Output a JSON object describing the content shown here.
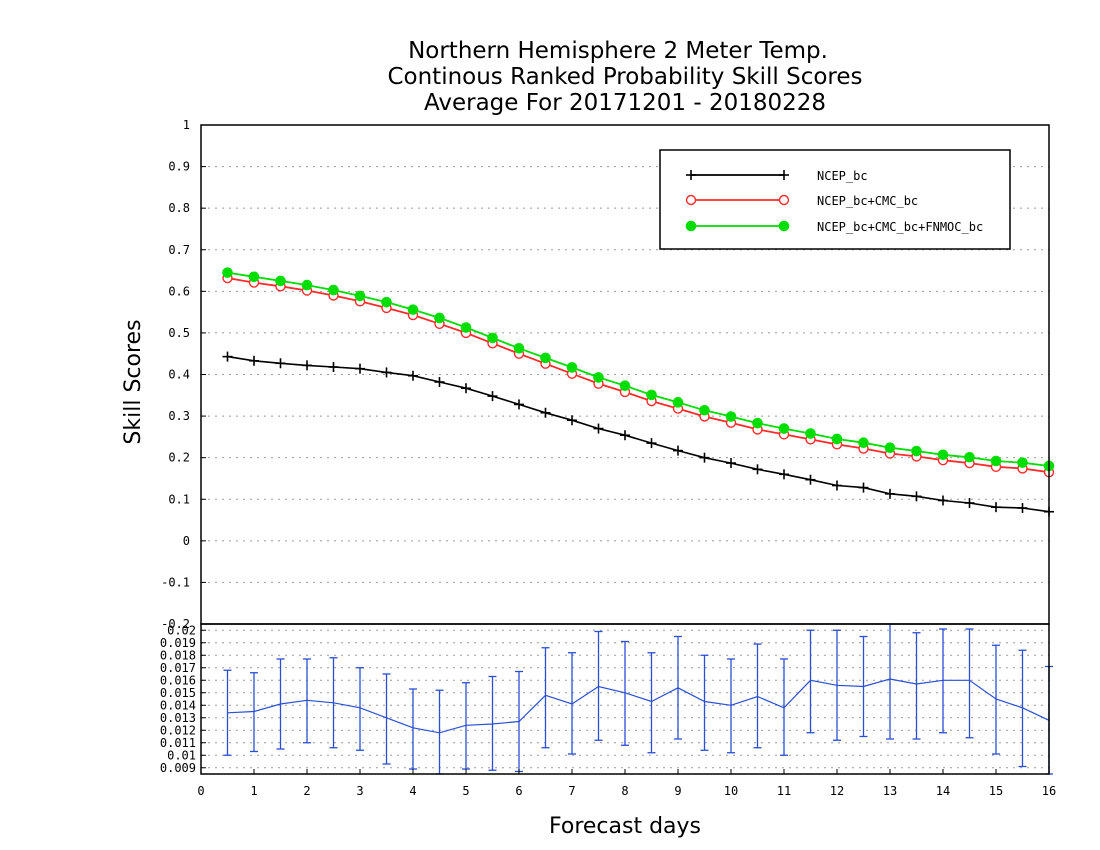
{
  "title": {
    "line1": "Northern Hemisphere 2 Meter Temp.",
    "line2": "Continous Ranked Probability Skill Scores",
    "line3": "Average For 20171201 - 20180228"
  },
  "chart_data": [
    {
      "type": "line",
      "ylabel": "Skill Scores",
      "xlim": [
        0,
        16
      ],
      "ylim": [
        -0.2,
        1.0
      ],
      "x": [
        0.5,
        1,
        1.5,
        2,
        2.5,
        3,
        3.5,
        4,
        4.5,
        5,
        5.5,
        6,
        6.5,
        7,
        7.5,
        8,
        8.5,
        9,
        9.5,
        10,
        10.5,
        11,
        11.5,
        12,
        12.5,
        13,
        13.5,
        14,
        14.5,
        15,
        15.5,
        16
      ],
      "yticks": [
        "-0.2",
        "-0.1",
        "0",
        "0.1",
        "0.2",
        "0.3",
        "0.4",
        "0.5",
        "0.6",
        "0.7",
        "0.8",
        "0.9",
        "1"
      ],
      "grid": true,
      "legend_position": "top-right",
      "series": [
        {
          "name": "NCEP_bc",
          "color": "#000000",
          "marker": "plus",
          "values": [
            0.443,
            0.433,
            0.427,
            0.422,
            0.418,
            0.414,
            0.405,
            0.397,
            0.382,
            0.367,
            0.348,
            0.328,
            0.308,
            0.29,
            0.27,
            0.254,
            0.235,
            0.217,
            0.2,
            0.187,
            0.172,
            0.16,
            0.147,
            0.133,
            0.128,
            0.113,
            0.107,
            0.097,
            0.091,
            0.081,
            0.079,
            0.07
          ]
        },
        {
          "name": "NCEP_bc+CMC_bc",
          "color": "#ff2a2a",
          "marker": "open-circle",
          "values": [
            0.632,
            0.621,
            0.612,
            0.602,
            0.59,
            0.576,
            0.56,
            0.543,
            0.522,
            0.5,
            0.475,
            0.45,
            0.426,
            0.402,
            0.378,
            0.358,
            0.336,
            0.318,
            0.299,
            0.284,
            0.268,
            0.256,
            0.244,
            0.232,
            0.222,
            0.21,
            0.203,
            0.194,
            0.187,
            0.178,
            0.174,
            0.165
          ]
        },
        {
          "name": "NCEP_bc+CMC_bc+FNMOC_bc",
          "color": "#00dd00",
          "marker": "filled-circle",
          "values": [
            0.645,
            0.635,
            0.625,
            0.615,
            0.603,
            0.589,
            0.574,
            0.556,
            0.536,
            0.513,
            0.488,
            0.463,
            0.44,
            0.417,
            0.393,
            0.373,
            0.351,
            0.333,
            0.314,
            0.299,
            0.283,
            0.27,
            0.258,
            0.245,
            0.236,
            0.224,
            0.216,
            0.207,
            0.201,
            0.192,
            0.188,
            0.18
          ]
        }
      ]
    },
    {
      "type": "line",
      "xlabel": "Forecast days",
      "xlim": [
        0,
        16
      ],
      "ylim": [
        0.0085,
        0.0205
      ],
      "xticks": [
        "0",
        "1",
        "2",
        "3",
        "4",
        "5",
        "6",
        "7",
        "8",
        "9",
        "10",
        "11",
        "12",
        "13",
        "14",
        "15",
        "16"
      ],
      "yticks": [
        "0.009",
        "0.01",
        "0.011",
        "0.012",
        "0.013",
        "0.014",
        "0.015",
        "0.016",
        "0.017",
        "0.018",
        "0.019",
        "0.02"
      ],
      "grid": true,
      "series": [
        {
          "color": "#2a4fd6",
          "error_bars": true,
          "values": [
            0.0134,
            0.0135,
            0.0141,
            0.0144,
            0.0142,
            0.0138,
            0.013,
            0.0122,
            0.0118,
            0.0124,
            0.0125,
            0.0127,
            0.0148,
            0.0141,
            0.0155,
            0.015,
            0.0143,
            0.0154,
            0.0143,
            0.014,
            0.0147,
            0.0138,
            0.016,
            0.0156,
            0.0155,
            0.0161,
            0.0157,
            0.016,
            0.016,
            0.0145,
            0.0138,
            0.0128
          ],
          "upper": [
            0.0168,
            0.0166,
            0.0177,
            0.0177,
            0.0178,
            0.017,
            0.0165,
            0.0153,
            0.0152,
            0.0158,
            0.0163,
            0.0167,
            0.0186,
            0.0182,
            0.0199,
            0.0191,
            0.0182,
            0.0195,
            0.018,
            0.0177,
            0.0189,
            0.0177,
            0.02,
            0.02,
            0.0195,
            0.0205,
            0.0198,
            0.0201,
            0.0201,
            0.0188,
            0.0184,
            0.0171
          ],
          "lower": [
            0.01,
            0.0103,
            0.0105,
            0.011,
            0.0106,
            0.0104,
            0.0093,
            0.0089,
            0.0085,
            0.0089,
            0.0088,
            0.0087,
            0.0106,
            0.0101,
            0.0112,
            0.0108,
            0.0102,
            0.0113,
            0.0104,
            0.0102,
            0.0106,
            0.01,
            0.0118,
            0.0112,
            0.0115,
            0.0113,
            0.0113,
            0.0118,
            0.0114,
            0.0101,
            0.0091,
            0.0085
          ]
        }
      ]
    }
  ]
}
